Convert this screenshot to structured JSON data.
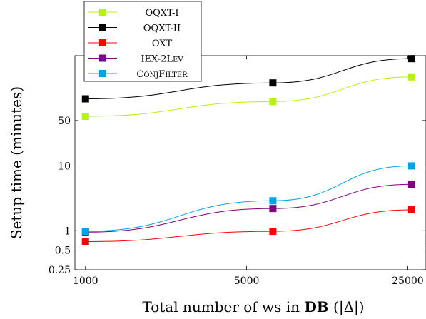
{
  "chart_data": {
    "type": "line",
    "x_scale": "log",
    "y_scale": "log",
    "xlabel_prefix": "Total number of ws in ",
    "xlabel_bold": "DB",
    "xlabel_suffix": " (|Δ|)",
    "ylabel": "Setup time (minutes)",
    "xlim": [
      900,
      30000
    ],
    "ylim": [
      0.25,
      500
    ],
    "x_ticks": [
      1000,
      5000,
      25000
    ],
    "x_tick_labels": [
      "1000",
      "5000",
      "25000"
    ],
    "y_ticks": [
      0.25,
      0.5,
      1,
      10,
      50
    ],
    "y_tick_labels": [
      "0.25",
      "0.5",
      "1",
      "10",
      "50"
    ],
    "grid": false,
    "legend_position": "top-left, above plot",
    "series": [
      {
        "name": "OQXT-I",
        "color": "#b5f20f",
        "x": [
          1000,
          6500,
          26000
        ],
        "y": [
          58,
          98,
          235
        ]
      },
      {
        "name": "OQXT-II",
        "color": "#000000",
        "x": [
          1000,
          6500,
          26000
        ],
        "y": [
          108,
          190,
          450
        ]
      },
      {
        "name": "OXT",
        "color": "#ff0000",
        "x": [
          1000,
          6500,
          26000
        ],
        "y": [
          0.68,
          0.98,
          2.1
        ]
      },
      {
        "name": "IEX-2Lev",
        "color": "#800080",
        "x": [
          1000,
          6500,
          26000
        ],
        "y": [
          0.95,
          2.2,
          5.2
        ]
      },
      {
        "name": "ConjFilter",
        "color": "#00a2e8",
        "x": [
          1000,
          6500,
          26000
        ],
        "y": [
          0.98,
          2.9,
          10
        ]
      }
    ]
  }
}
